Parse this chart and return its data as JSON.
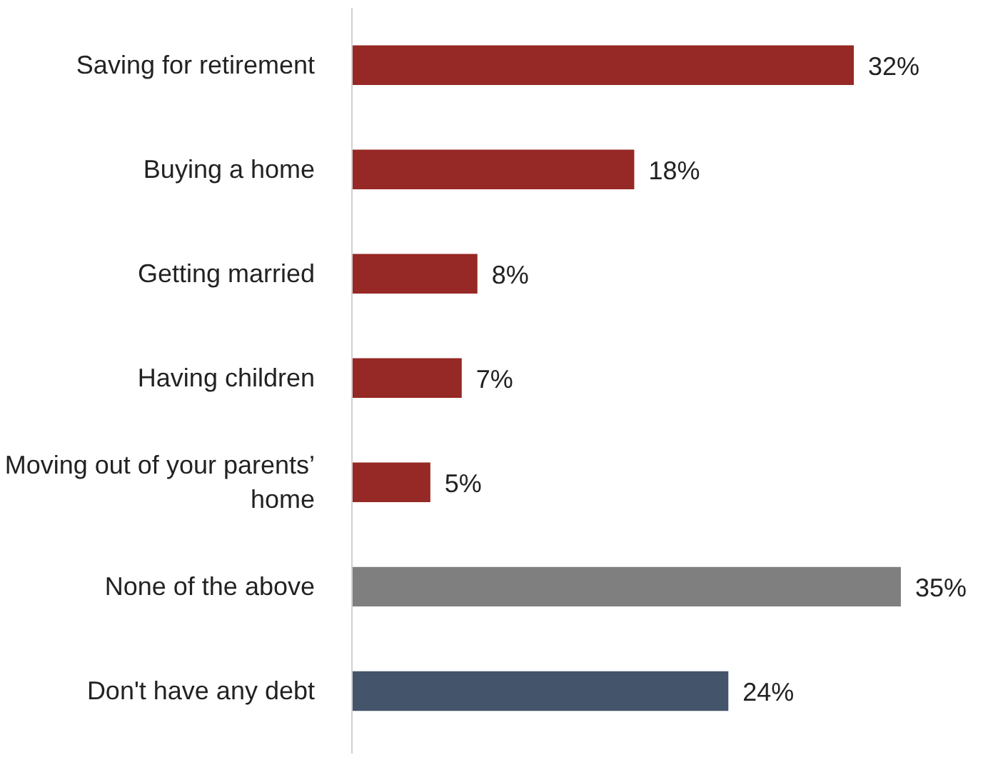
{
  "chart_data": {
    "type": "bar",
    "orientation": "horizontal",
    "categories": [
      "Saving for retirement",
      "Buying a home",
      "Getting married",
      "Having children",
      "Moving out of your parents’ home",
      "None of the above",
      "Don't have any debt"
    ],
    "values": [
      32,
      18,
      8,
      7,
      5,
      35,
      24
    ],
    "colors": [
      "#962825",
      "#962825",
      "#962825",
      "#962825",
      "#962825",
      "#7f7f7f",
      "#44546a"
    ],
    "value_labels": [
      "32%",
      "18%",
      "8%",
      "7%",
      "5%",
      "35%",
      "24%"
    ],
    "grid": false
  }
}
